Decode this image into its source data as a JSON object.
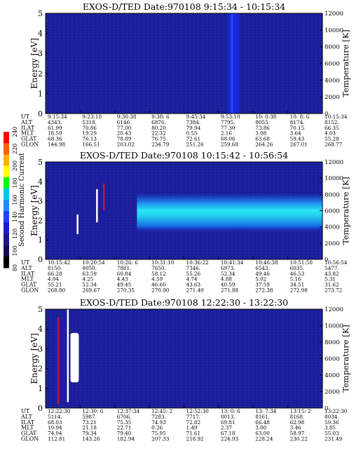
{
  "colors": {
    "background": "#1c1f9c",
    "band_dark": "#1a2ad8",
    "band_mid": "#1f6cf0",
    "band_light": "#22c8f0",
    "band_cyan": "#2ae8f2",
    "white_spike": "#ffffff",
    "red_spike": "#c01828"
  },
  "colorbar": {
    "label": "Second Harmonic Current",
    "ticks": [
      "240",
      "220",
      "200",
      "180",
      "160",
      "140",
      "120",
      "100",
      "80"
    ],
    "colors": [
      "#ff0000",
      "#ff6000",
      "#ffb000",
      "#ffff00",
      "#00ff00",
      "#00c8f0",
      "#1e8cff",
      "#2040ff",
      "#1a1ad0",
      "#1b1790",
      "#180c50",
      "#000000"
    ]
  },
  "chart_data": [
    {
      "type": "heatmap",
      "title": "EXOS-D/TED    Date:970108   9:15:34 - 10:15:34",
      "ylabel": "Energy [eV]",
      "y2label": "Temperature [K]",
      "ylim": [
        0,
        5
      ],
      "y2lim": [
        0,
        12000
      ],
      "yticks": [
        "0",
        "1",
        "2",
        "3",
        "4",
        "5"
      ],
      "y2ticks": [
        "0",
        "2000",
        "4000",
        "6000",
        "8000",
        "10000",
        "12000"
      ],
      "features": [
        {
          "kind": "vertical_bright_band",
          "x_from": 0.66,
          "x_to": 0.7,
          "color": "band_dark"
        }
      ],
      "rows": [
        "UT",
        "ALT",
        "ILAT",
        "MLT",
        "GLAT",
        "GLON"
      ],
      "columns": [
        [
          "9:15:34",
          "4343.",
          "61.99",
          "18.59",
          "68.36",
          "144.98"
        ],
        [
          "9:23:10",
          "5318.",
          "70.86",
          "19.29",
          "76.13",
          "166.51"
        ],
        [
          "9:30:38",
          "6146.",
          "77.00",
          "20.43",
          "78.89",
          "203.02"
        ],
        [
          "9:38: 6",
          "6876.",
          "80.20",
          "22.32",
          "76.75",
          "234.79"
        ],
        [
          "9:45:34",
          "7384.",
          "79.94",
          "0.55",
          "72.61",
          "251.26"
        ],
        [
          "9:53:10",
          "7795.",
          "77.30",
          "2.16",
          "68.06",
          "259.68"
        ],
        [
          "10: 0:38",
          "8055.",
          "73.86",
          "3.08",
          "63.68",
          "264.26"
        ],
        [
          "10: 8: 6",
          "8174.",
          "70.15",
          "3.64",
          "59.43",
          "267.01"
        ],
        [
          "10:15:34",
          "8152.",
          "66.35",
          "4.03",
          "55.28",
          "268.77"
        ]
      ]
    },
    {
      "type": "heatmap",
      "title": "EXOS-D/TED   Date:970108   10:15:42 - 10:56:54",
      "ylabel": "Energy [eV]",
      "y2label": "Temperature [K]",
      "ylim": [
        0,
        5
      ],
      "y2lim": [
        0,
        12000
      ],
      "yticks": [
        "0",
        "1",
        "2",
        "3",
        "4",
        "5"
      ],
      "y2ticks": [
        "0",
        "2000",
        "4000",
        "6000",
        "8000",
        "10000",
        "12000"
      ],
      "features": [
        {
          "kind": "spike",
          "x": 0.115,
          "e_from": 1.3,
          "e_to": 2.3,
          "color": "white_spike"
        },
        {
          "kind": "spike",
          "x": 0.185,
          "e_from": 1.9,
          "e_to": 3.6,
          "color": "white_spike"
        },
        {
          "kind": "spike",
          "x": 0.21,
          "e_from": 2.5,
          "e_to": 3.9,
          "color": "red_spike"
        },
        {
          "kind": "band",
          "x_from": 0.33,
          "x_to": 1.0,
          "e_center": 2.4,
          "e_width": 1.0,
          "color": "band_light"
        }
      ],
      "rows": [
        "UT",
        "ALT",
        "ILAT",
        "MLT",
        "GLAT",
        "GLON"
      ],
      "columns": [
        [
          "10:15:42",
          "8150.",
          "66.28",
          "4.04",
          "55.21",
          "268.80"
        ],
        [
          "10:20:54",
          "8050.",
          "63.59",
          "4.25",
          "52.34",
          "269.67"
        ],
        [
          "10:26: 6",
          "7881.",
          "60.84",
          "4.43",
          "49.45",
          "270.35"
        ],
        [
          "10:31:10",
          "7650.",
          "58.12",
          "4.59",
          "46.60",
          "270.90"
        ],
        [
          "10:36:22",
          "7346.",
          "55.26",
          "4.74",
          "43.63",
          "271.40"
        ],
        [
          "10:41:34",
          "6973.",
          "52.34",
          "4.88",
          "40.59",
          "271.88"
        ],
        [
          "10:46:38",
          "6543.",
          "49.46",
          "5.02",
          "37.59",
          "272.38"
        ],
        [
          "10:51:50",
          "6035.",
          "46.53",
          "5.16",
          "34.51",
          "272.98"
        ],
        [
          "10:56:54",
          "5477.",
          "43.82",
          "5.31",
          "31.62",
          "273.72"
        ]
      ]
    },
    {
      "type": "heatmap",
      "title": "EXOS-D/TED   Date:970108   12:22:30 - 13:22:30",
      "ylabel": "Energy [eV]",
      "y2label": "Temperature [K]",
      "ylim": [
        0,
        5
      ],
      "y2lim": [
        0,
        12000
      ],
      "yticks": [
        "0",
        "1",
        "2",
        "3",
        "4",
        "5"
      ],
      "y2ticks": [
        "0",
        "2000",
        "4000",
        "6000",
        "8000",
        "10000",
        "12000"
      ],
      "features": [
        {
          "kind": "spike",
          "x": 0.08,
          "e_from": 0.3,
          "e_to": 5.0,
          "color": "white_spike"
        },
        {
          "kind": "blob",
          "x_from": 0.09,
          "x_to": 0.12,
          "e_from": 1.3,
          "e_to": 3.8,
          "color": "white_spike"
        },
        {
          "kind": "spike",
          "x": 0.045,
          "e_from": 0.2,
          "e_to": 4.6,
          "color": "red_spike"
        }
      ],
      "rows": [
        "UT",
        "ALT",
        "ILAT",
        "MLT",
        "GLAT",
        "GLON"
      ],
      "columns": [
        [
          "12:22:30",
          "5114.",
          "68.03",
          "19.94",
          "74.04",
          "112.81"
        ],
        [
          "12:30: 6",
          "5987.",
          "73.21",
          "21.18",
          "79.34",
          "143.26"
        ],
        [
          "12:37:34",
          "6706.",
          "75.35",
          "22.71",
          "79.40",
          "182.94"
        ],
        [
          "12:45: 2",
          "7283.",
          "74.93",
          "0.26",
          "75.95",
          "207.33"
        ],
        [
          "12:52:30",
          "7717.",
          "72.82",
          "1.49",
          "71.61",
          "218.92"
        ],
        [
          "13: 0: 6",
          "8013.",
          "69.81",
          "2.37",
          "67.18",
          "224.93"
        ],
        [
          "13: 7:34",
          "8161.",
          "66.48",
          "3.00",
          "63.00",
          "228.24"
        ],
        [
          "13:15: 2",
          "8168.",
          "62.98",
          "3.46",
          "58.97",
          "230.22"
        ],
        [
          "13:22:30",
          "8034.",
          "59.36",
          "3.85",
          "55.03",
          "231.49"
        ]
      ]
    }
  ]
}
